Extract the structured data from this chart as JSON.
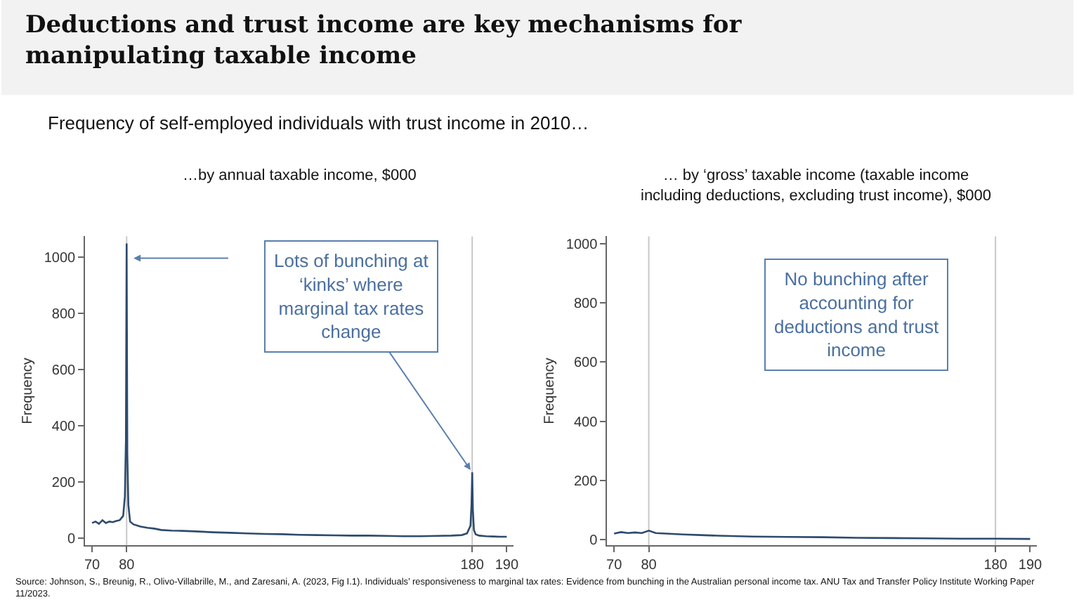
{
  "chart_data": [
    {
      "type": "line",
      "title": "…by annual taxable income, $000",
      "ylabel": "Frequency",
      "annotations": [
        "Deductions and trust income are key mechanisms for manipulating taxable income",
        "Frequency of self-employed individuals with trust income in 2010…",
        {
          "text": "Lots of bunching at ‘kinks’ where marginal tax rates change",
          "x": 180,
          "y": 235
        },
        "Source: Johnson, S., Breunig, R., Olivo-Villabrille, M., and Zaresani, A. (2023, Fig I.1). Individuals’ responsiveness to marginal tax rates: Evidence from bunching in the Australian personal income tax. ANU Tax and Transfer Policy Institute Working Paper 11/2023."
      ],
      "series": [
        {
          "color": "#2e4a6e",
          "x": [
            70,
            71,
            72,
            73,
            74,
            75,
            76,
            77,
            78,
            79,
            79.5,
            79.8,
            80,
            80.2,
            80.5,
            81,
            82,
            84,
            86,
            88,
            90,
            93,
            96,
            100,
            105,
            110,
            115,
            120,
            125,
            130,
            135,
            140,
            145,
            150,
            155,
            160,
            165,
            170,
            174,
            177,
            178.5,
            179.5,
            179.8,
            180,
            180.2,
            180.5,
            181,
            182,
            184,
            186,
            188,
            190
          ],
          "values": [
            55,
            60,
            52,
            65,
            55,
            60,
            58,
            62,
            65,
            80,
            150,
            350,
            1050,
            300,
            120,
            60,
            50,
            42,
            38,
            35,
            30,
            28,
            27,
            25,
            22,
            20,
            18,
            16,
            15,
            13,
            12,
            11,
            10,
            10,
            9,
            8,
            8,
            9,
            10,
            12,
            18,
            45,
            120,
            235,
            100,
            30,
            15,
            10,
            8,
            7,
            6,
            6
          ]
        }
      ],
      "xlim": [
        68,
        192
      ],
      "xticks": [
        70,
        80,
        180,
        190
      ],
      "ylim": [
        -25,
        1075
      ],
      "yticks": [
        0,
        200,
        400,
        600,
        800,
        1000
      ],
      "ref_lines": [
        {
          "axis": "x",
          "value": 80,
          "color": "#c8c8c8"
        },
        {
          "axis": "x",
          "value": 180,
          "color": "#c8c8c8"
        }
      ],
      "grid": false
    },
    {
      "type": "line",
      "title": "… by ‘gross’ taxable income (taxable income including deductions, excluding trust income), $000",
      "ylabel": "Frequency",
      "annotations": [
        "No bunching after accounting for deductions and trust income"
      ],
      "series": [
        {
          "color": "#2e4a6e",
          "x": [
            70,
            72,
            74,
            76,
            78,
            80,
            82,
            85,
            90,
            95,
            100,
            110,
            120,
            130,
            140,
            150,
            160,
            170,
            180,
            190
          ],
          "values": [
            20,
            25,
            22,
            24,
            22,
            30,
            22,
            20,
            17,
            15,
            13,
            10,
            9,
            8,
            6,
            5,
            4,
            3,
            3,
            2
          ]
        }
      ],
      "xlim": [
        68,
        192
      ],
      "xticks": [
        70,
        80,
        180,
        190
      ],
      "ylim": [
        -20,
        1025
      ],
      "yticks": [
        0,
        200,
        400,
        600,
        800,
        1000
      ],
      "ref_lines": [
        {
          "axis": "x",
          "value": 80,
          "color": "#c8c8c8"
        },
        {
          "axis": "x",
          "value": 180,
          "color": "#c8c8c8"
        }
      ],
      "grid": false
    }
  ]
}
